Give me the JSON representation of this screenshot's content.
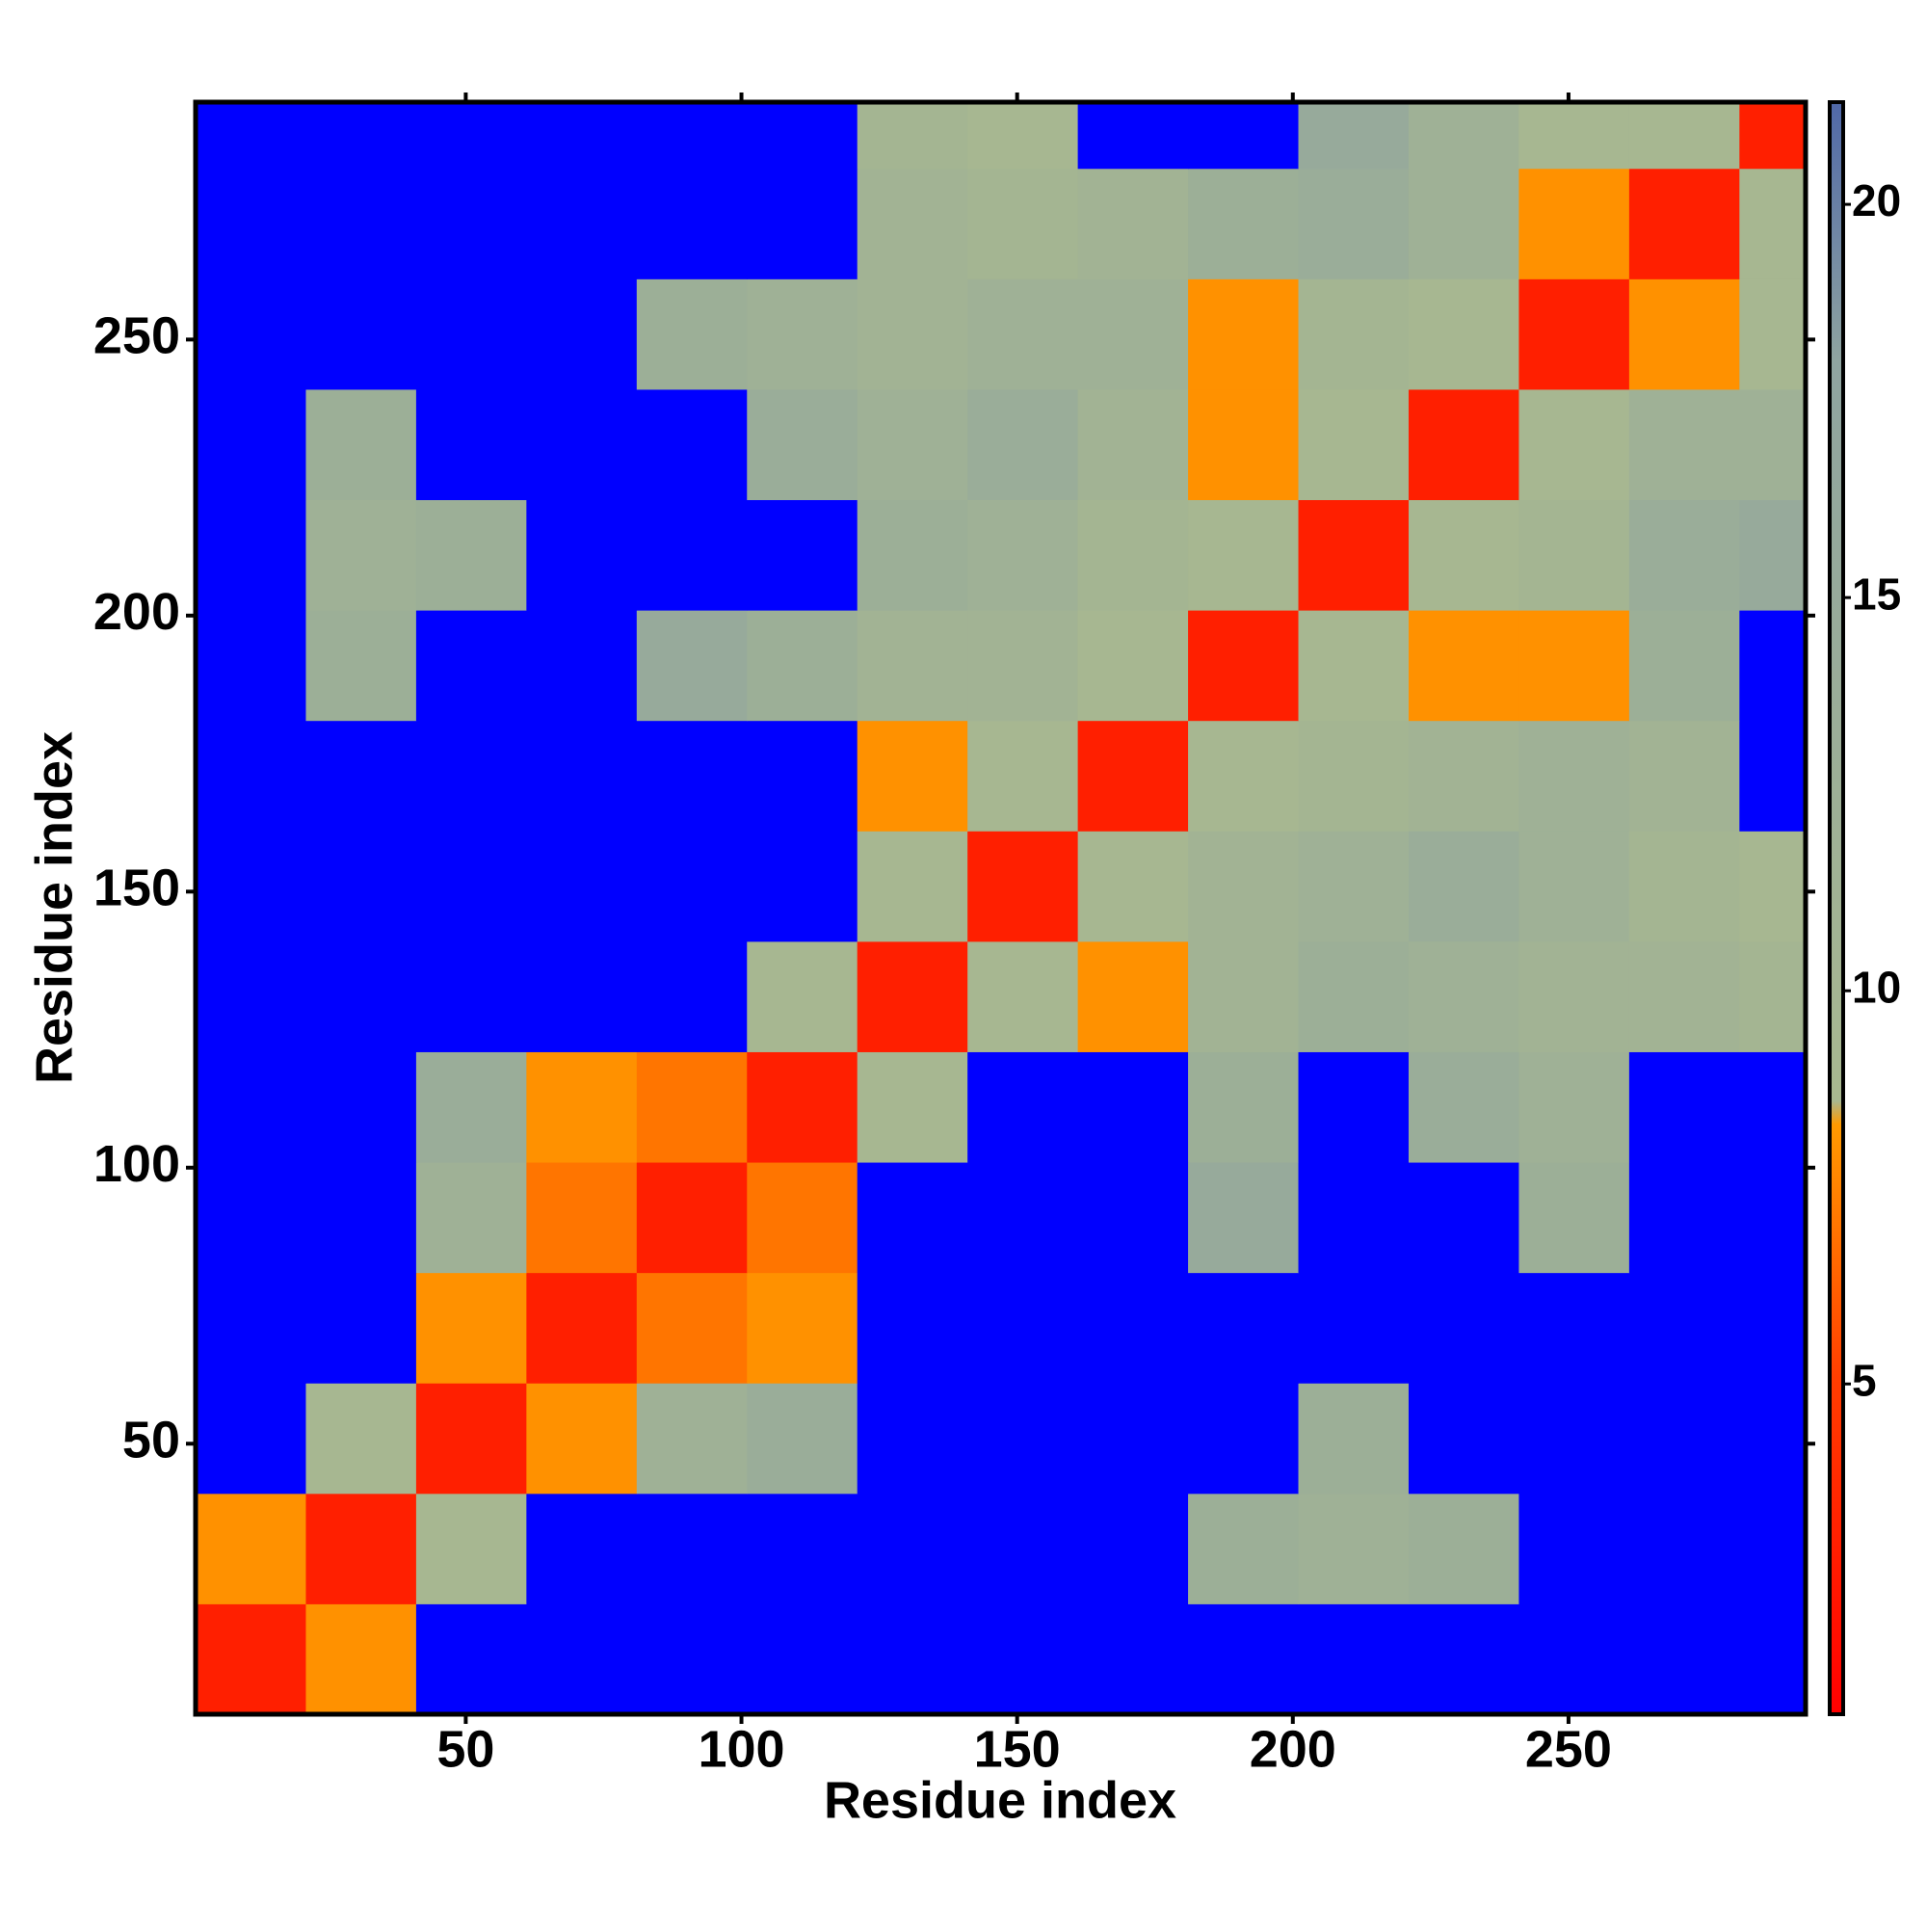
{
  "chart_data": {
    "type": "heatmap",
    "xlabel": "Residue index",
    "ylabel": "Residue index",
    "xbins": [
      1,
      21,
      41,
      61,
      81,
      101,
      121,
      141,
      161,
      181,
      201,
      221,
      241,
      261,
      281,
      293
    ],
    "ybins": [
      1,
      21,
      41,
      61,
      81,
      101,
      121,
      141,
      161,
      181,
      201,
      221,
      241,
      261,
      281,
      293
    ],
    "xlim": [
      1,
      293
    ],
    "ylim": [
      1,
      293
    ],
    "xticks": [
      50,
      100,
      150,
      200,
      250
    ],
    "yticks": [
      50,
      100,
      150,
      200,
      250
    ],
    "z": [
      [
        3,
        8,
        25,
        25,
        25,
        25,
        25,
        25,
        25,
        25,
        25,
        25,
        25,
        25,
        25
      ],
      [
        8,
        3,
        9,
        25,
        25,
        25,
        25,
        25,
        25,
        13,
        12,
        13,
        25,
        25,
        25
      ],
      [
        25,
        9,
        3,
        8,
        12,
        14,
        25,
        25,
        25,
        25,
        13,
        25,
        25,
        25,
        25
      ],
      [
        25,
        25,
        8,
        3,
        7,
        8,
        25,
        25,
        25,
        25,
        25,
        25,
        25,
        25,
        25
      ],
      [
        25,
        25,
        12,
        7,
        3,
        7,
        25,
        25,
        25,
        15,
        25,
        25,
        13,
        25,
        25
      ],
      [
        25,
        25,
        14,
        8,
        7,
        3,
        9,
        25,
        25,
        13,
        25,
        14,
        12,
        25,
        25
      ],
      [
        25,
        25,
        25,
        25,
        25,
        9,
        3,
        9,
        8,
        11,
        13,
        12,
        11,
        11,
        10
      ],
      [
        25,
        25,
        25,
        25,
        25,
        25,
        9,
        3,
        9,
        11,
        12,
        14,
        12,
        10,
        9
      ],
      [
        25,
        25,
        25,
        25,
        25,
        25,
        8,
        9,
        3,
        9,
        10,
        11,
        12,
        11,
        25
      ],
      [
        25,
        13,
        25,
        25,
        15,
        13,
        11,
        11,
        9,
        3,
        9,
        8,
        8,
        13,
        25
      ],
      [
        25,
        12,
        13,
        25,
        25,
        25,
        13,
        12,
        10,
        9,
        3,
        9,
        10,
        14,
        15
      ],
      [
        25,
        13,
        25,
        25,
        25,
        14,
        12,
        14,
        11,
        8,
        9,
        3,
        9,
        12,
        12
      ],
      [
        25,
        25,
        25,
        25,
        13,
        12,
        11,
        12,
        12,
        8,
        10,
        9,
        3,
        8,
        9
      ],
      [
        25,
        25,
        25,
        25,
        25,
        25,
        11,
        10,
        11,
        13,
        14,
        12,
        8,
        3,
        9
      ],
      [
        25,
        25,
        25,
        25,
        25,
        25,
        10,
        9,
        25,
        25,
        15,
        12,
        9,
        9,
        3
      ]
    ],
    "colorbar": {
      "lim": [
        0.8,
        21.3
      ],
      "ticks": [
        5,
        10,
        15,
        20
      ],
      "stops": [
        {
          "value": 0.8,
          "color": "#ff0000"
        },
        {
          "value": 5,
          "color": "#ff3c00"
        },
        {
          "value": 8.3,
          "color": "#ff9a00"
        },
        {
          "value": 8.6,
          "color": "#a8b890"
        },
        {
          "value": 18,
          "color": "#8fa4a0"
        },
        {
          "value": 21.3,
          "color": "#5068a8"
        }
      ]
    },
    "over_color": "#0000ff"
  }
}
